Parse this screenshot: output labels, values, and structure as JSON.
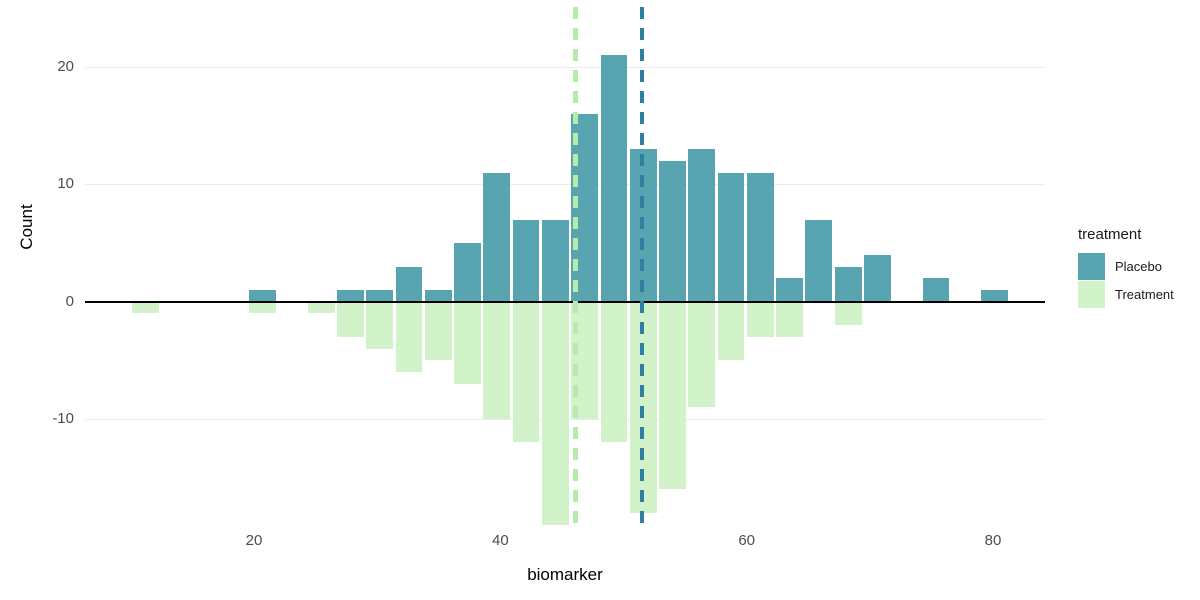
{
  "legend": {
    "title": "treatment",
    "position": "right"
  },
  "chart_data": {
    "type": "bar",
    "subtype": "mirrored-histogram",
    "title": "",
    "xlabel": "biomarker",
    "ylabel": "Count",
    "x_ticks": [
      20,
      40,
      60,
      80
    ],
    "y_ticks": [
      20,
      10,
      0,
      -10
    ],
    "xlim": [
      6.3,
      84.2
    ],
    "ylim": [
      -19,
      25
    ],
    "grid": true,
    "background": "#FFFFFF",
    "gridline_color": "#EBEBEB",
    "zero_line_color": "#000000",
    "tick_label_color": "#4D4D4D",
    "bins": {
      "start": 10,
      "width": 2.377,
      "count": 30
    },
    "series": [
      {
        "name": "Placebo",
        "direction": "up",
        "color": "#58A4B1",
        "counts": [
          0,
          0,
          0,
          0,
          1,
          0,
          0,
          1,
          1,
          3,
          1,
          5,
          11,
          7,
          7,
          16,
          21,
          13,
          12,
          13,
          11,
          11,
          2,
          7,
          3,
          4,
          0,
          2,
          0,
          1
        ]
      },
      {
        "name": "Treatment",
        "direction": "down",
        "color": "#D2F2CA",
        "counts": [
          1,
          0,
          0,
          0,
          1,
          0,
          1,
          3,
          4,
          6,
          5,
          7,
          10,
          12,
          19,
          10,
          12,
          18,
          16,
          9,
          5,
          3,
          3,
          0,
          2,
          0,
          0,
          0,
          0,
          0
        ]
      }
    ],
    "mean_lines": [
      {
        "series": "Treatment",
        "x": 46.1,
        "color": "#B7EBAB",
        "style": "dashed"
      },
      {
        "series": "Placebo",
        "x": 51.5,
        "color": "#2F7FA0",
        "style": "dashed"
      }
    ]
  }
}
